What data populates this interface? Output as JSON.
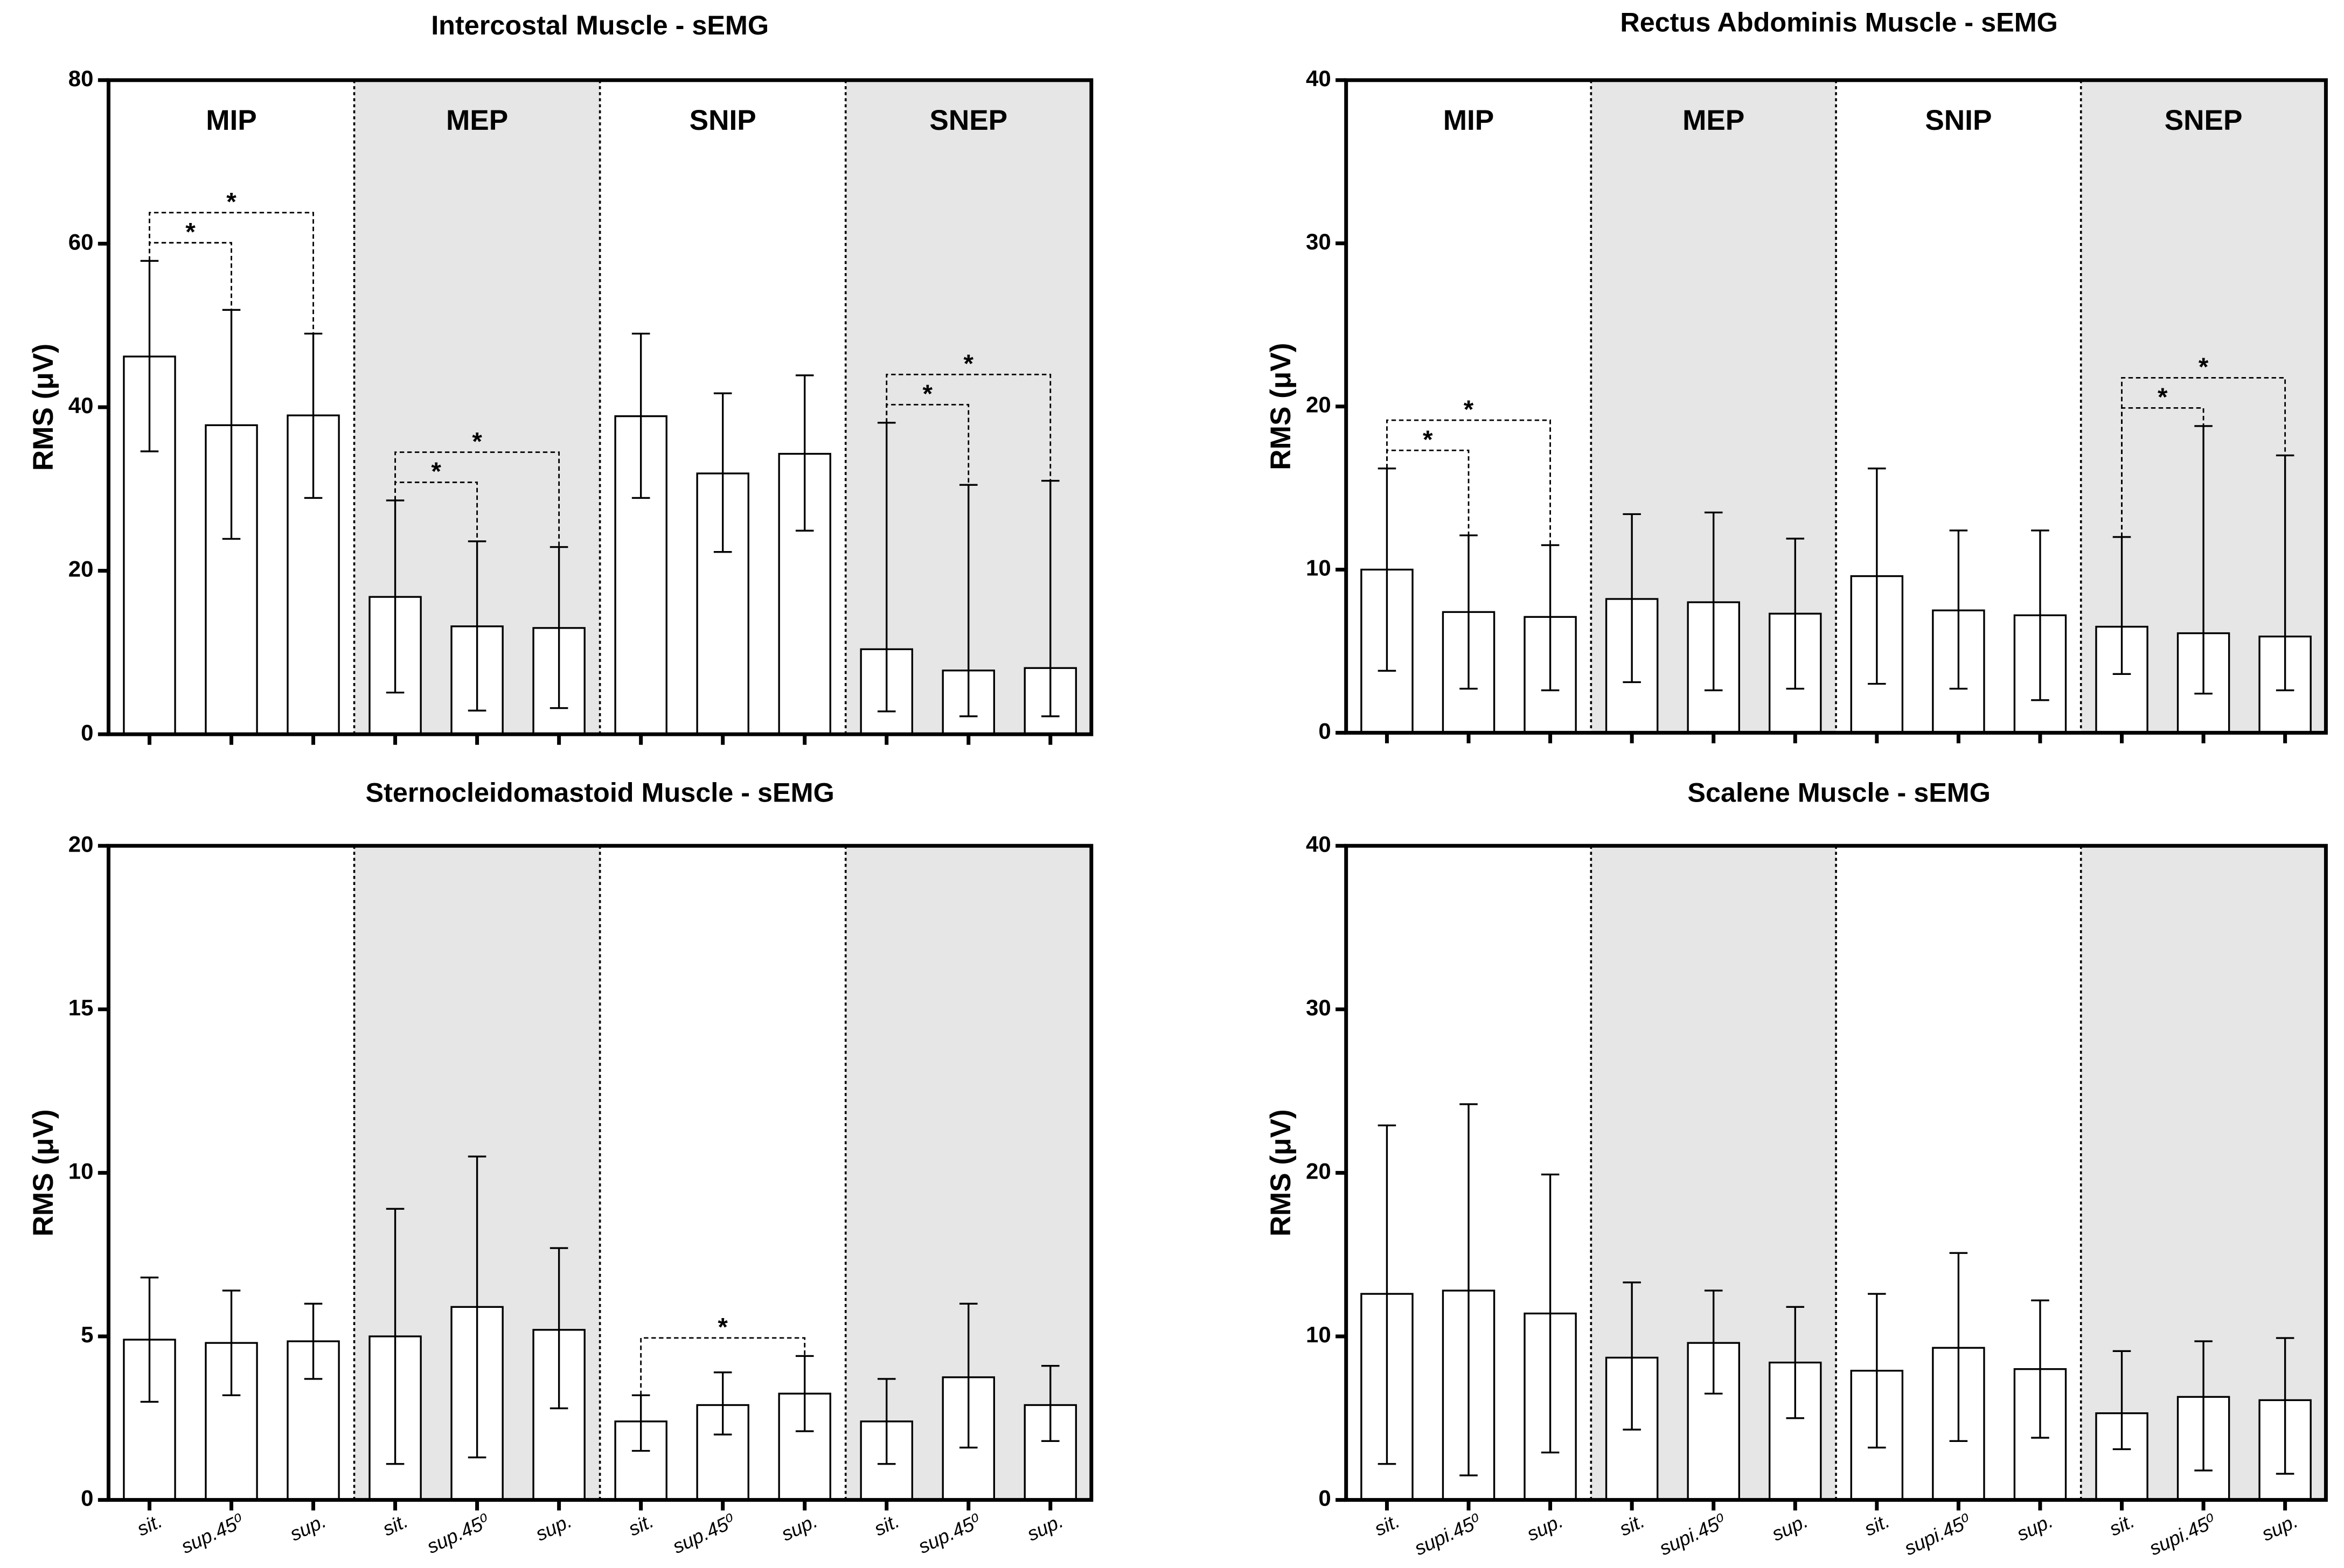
{
  "chart_data": [
    {
      "type": "bar",
      "title": "Intercostal Muscle - sEMG",
      "ylabel": "RMS (μV)",
      "groups": [
        "MIP",
        "MEP",
        "SNIP",
        "SNEP"
      ],
      "categories": [
        null,
        null,
        null,
        null,
        null,
        null,
        null,
        null,
        null,
        null,
        null,
        null
      ],
      "values": [
        46.2,
        37.8,
        39.0,
        16.8,
        13.2,
        13.0,
        38.9,
        31.9,
        34.3,
        10.4,
        7.8,
        8.1
      ],
      "whisker_low": [
        34.6,
        23.9,
        28.9,
        5.1,
        2.9,
        3.2,
        28.9,
        22.3,
        24.9,
        2.8,
        2.2,
        2.2
      ],
      "whisker_high": [
        57.9,
        51.9,
        49.0,
        28.6,
        23.6,
        22.9,
        49.0,
        41.7,
        43.9,
        38.1,
        30.5,
        31.0
      ],
      "significance": [
        {
          "from": 0,
          "to": 1,
          "label": "*"
        },
        {
          "from": 0,
          "to": 2,
          "label": "*"
        },
        {
          "from": 3,
          "to": 4,
          "label": "*"
        },
        {
          "from": 3,
          "to": 5,
          "label": "*"
        },
        {
          "from": 9,
          "to": 10,
          "label": "*"
        },
        {
          "from": 9,
          "to": 11,
          "label": "*"
        }
      ],
      "ylim": [
        0,
        80
      ],
      "yticks": [
        0,
        20,
        40,
        60,
        80
      ],
      "color": "#ffffff"
    },
    {
      "type": "bar",
      "title": "Rectus Abdominis  Muscle - sEMG",
      "ylabel": "RMS (μV)",
      "groups": [
        "MIP",
        "MEP",
        "SNIP",
        "SNEP"
      ],
      "categories": [
        null,
        null,
        null,
        null,
        null,
        null,
        null,
        null,
        null,
        null,
        null,
        null
      ],
      "values": [
        10.0,
        7.4,
        7.1,
        8.2,
        8.0,
        7.3,
        9.6,
        7.5,
        7.2,
        6.5,
        6.1,
        5.9
      ],
      "whisker_low": [
        3.8,
        2.7,
        2.6,
        3.1,
        2.6,
        2.7,
        3.0,
        2.7,
        2.0,
        3.6,
        2.4,
        2.6
      ],
      "whisker_high": [
        16.2,
        12.1,
        11.5,
        13.4,
        13.5,
        11.9,
        16.2,
        12.4,
        12.4,
        12.0,
        18.8,
        17.0
      ],
      "significance": [
        {
          "from": 0,
          "to": 1,
          "label": "*"
        },
        {
          "from": 0,
          "to": 2,
          "label": "*"
        },
        {
          "from": 9,
          "to": 10,
          "label": "*"
        },
        {
          "from": 9,
          "to": 11,
          "label": "*"
        }
      ],
      "ylim": [
        0,
        40
      ],
      "yticks": [
        0,
        10,
        20,
        30,
        40
      ],
      "color": "#ffffff"
    },
    {
      "type": "bar",
      "title": "Sternocleidomastoid Muscle - sEMG",
      "ylabel": "RMS (μV)",
      "categories": [
        "sit.",
        "sup.45⁰",
        "sup.",
        "sit.",
        "sup.45⁰",
        "sup.",
        "sit.",
        "sup.45⁰",
        "sup.",
        "sit.",
        "sup.45⁰",
        "sup."
      ],
      "values": [
        4.9,
        4.8,
        4.85,
        5.0,
        5.9,
        5.2,
        2.4,
        2.9,
        3.25,
        2.4,
        3.75,
        2.9
      ],
      "whisker_low": [
        3.0,
        3.2,
        3.7,
        1.1,
        1.3,
        2.8,
        1.5,
        2.0,
        2.1,
        1.1,
        1.6,
        1.8
      ],
      "whisker_high": [
        6.8,
        6.4,
        6.0,
        8.9,
        10.5,
        7.7,
        3.2,
        3.9,
        4.4,
        3.7,
        6.0,
        4.1
      ],
      "significance": [
        {
          "from": 6,
          "to": 8,
          "label": "*"
        }
      ],
      "ylim": [
        0,
        20
      ],
      "yticks": [
        0,
        5,
        10,
        15,
        20
      ],
      "color": "#ffffff"
    },
    {
      "type": "bar",
      "title": "Scalene Muscle - sEMG",
      "ylabel": "RMS (μV)",
      "categories": [
        "sit.",
        "supi.45⁰",
        "sup.",
        "sit.",
        "supi.45⁰",
        "sup.",
        "sit.",
        "supi.45⁰",
        "sup.",
        "sit.",
        "supi.45⁰",
        "sup."
      ],
      "values": [
        12.6,
        12.8,
        11.4,
        8.7,
        9.6,
        8.4,
        7.9,
        9.3,
        8.0,
        5.3,
        6.3,
        6.1
      ],
      "whisker_low": [
        2.2,
        1.5,
        2.9,
        4.3,
        6.5,
        5.0,
        3.2,
        3.6,
        3.8,
        3.1,
        1.8,
        1.6
      ],
      "whisker_high": [
        22.9,
        24.2,
        19.9,
        13.3,
        12.8,
        11.8,
        12.6,
        15.1,
        12.2,
        9.1,
        9.7,
        9.9
      ],
      "ylim": [
        0,
        40
      ],
      "yticks": [
        0,
        10,
        20,
        30,
        40
      ],
      "color": "#ffffff"
    }
  ]
}
